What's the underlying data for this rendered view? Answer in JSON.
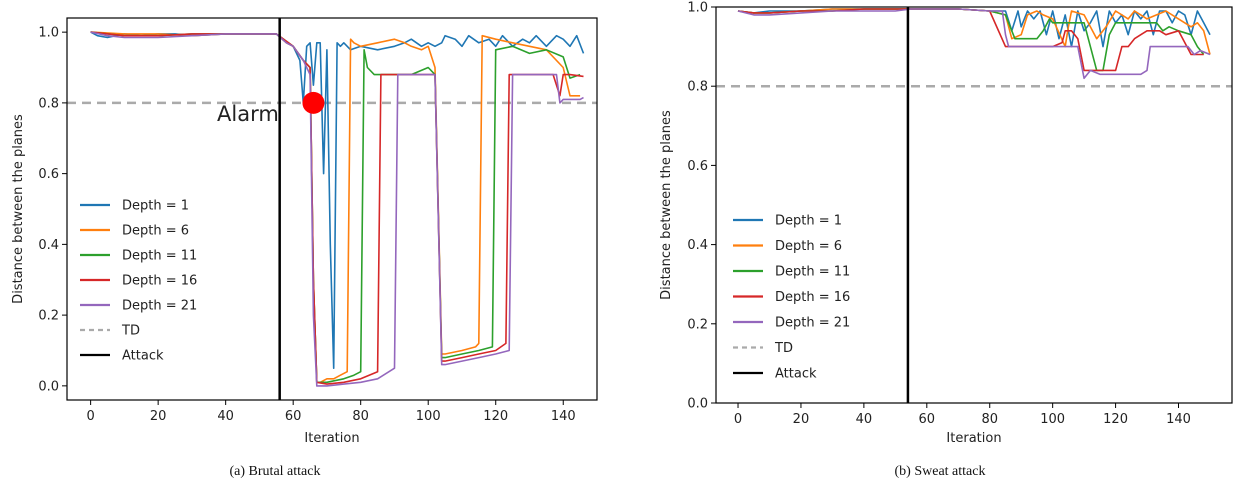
{
  "chart_data": [
    {
      "type": "line",
      "caption": "(a) Brutal attack",
      "xlabel": "Iteration",
      "ylabel": "Distance between the planes",
      "xlim": [
        -7,
        150
      ],
      "ylim": [
        -0.04,
        1.04
      ],
      "xticks": [
        0,
        20,
        40,
        60,
        80,
        100,
        120,
        140
      ],
      "yticks": [
        0.0,
        0.2,
        0.4,
        0.6,
        0.8,
        1.0
      ],
      "ytick_labels": [
        "0.0",
        "0.2",
        "0.4",
        "0.6",
        "0.8",
        "1.0"
      ],
      "grid": false,
      "legend_position": "lower-left",
      "series": [
        {
          "name": "Depth = 1",
          "color": "#1f77b4",
          "x": [
            0,
            2,
            5,
            10,
            15,
            20,
            25,
            30,
            40,
            50,
            55,
            58,
            60,
            62,
            63,
            64,
            65,
            66,
            67,
            68,
            69,
            70,
            71,
            72,
            73,
            74,
            75,
            77,
            80,
            85,
            90,
            93,
            95,
            98,
            100,
            102,
            104,
            105,
            108,
            110,
            112,
            115,
            118,
            120,
            122,
            125,
            128,
            130,
            132,
            135,
            138,
            140,
            142,
            144,
            146
          ],
          "y": [
            1.0,
            0.99,
            0.985,
            0.995,
            0.99,
            0.995,
            0.995,
            0.99,
            0.995,
            0.995,
            0.995,
            0.97,
            0.96,
            0.92,
            0.8,
            0.96,
            0.97,
            0.85,
            0.97,
            0.97,
            0.6,
            0.95,
            0.4,
            0.05,
            0.97,
            0.96,
            0.97,
            0.95,
            0.96,
            0.95,
            0.96,
            0.97,
            0.98,
            0.96,
            0.97,
            0.96,
            0.97,
            0.99,
            0.98,
            0.96,
            0.99,
            0.97,
            0.98,
            0.96,
            0.99,
            0.96,
            0.98,
            0.97,
            0.99,
            0.96,
            0.99,
            0.98,
            0.96,
            0.99,
            0.94
          ]
        },
        {
          "name": "Depth = 6",
          "color": "#ff7f0e",
          "x": [
            0,
            10,
            20,
            30,
            40,
            50,
            55,
            58,
            60,
            63,
            65,
            66,
            67,
            68,
            70,
            72,
            74,
            76,
            77,
            78,
            80,
            85,
            90,
            93,
            95,
            98,
            100,
            102,
            104,
            105,
            110,
            114,
            115,
            116,
            120,
            125,
            130,
            135,
            140,
            142,
            145
          ],
          "y": [
            1.0,
            0.995,
            0.995,
            0.99,
            0.995,
            0.995,
            0.995,
            0.97,
            0.96,
            0.92,
            0.9,
            0.3,
            0.01,
            0.01,
            0.02,
            0.02,
            0.03,
            0.04,
            0.98,
            0.97,
            0.96,
            0.97,
            0.98,
            0.97,
            0.96,
            0.95,
            0.96,
            0.9,
            0.09,
            0.09,
            0.1,
            0.11,
            0.12,
            0.99,
            0.98,
            0.97,
            0.96,
            0.95,
            0.9,
            0.82,
            0.82
          ]
        },
        {
          "name": "Depth = 11",
          "color": "#2ca02c",
          "x": [
            0,
            10,
            20,
            30,
            40,
            50,
            55,
            60,
            63,
            65,
            66,
            67,
            70,
            75,
            78,
            80,
            81,
            82,
            84,
            85,
            88,
            90,
            95,
            100,
            102,
            104,
            105,
            110,
            115,
            119,
            120,
            125,
            130,
            135,
            140,
            142,
            145
          ],
          "y": [
            1.0,
            0.99,
            0.99,
            0.995,
            0.995,
            0.995,
            0.995,
            0.96,
            0.92,
            0.9,
            0.3,
            0.01,
            0.01,
            0.02,
            0.03,
            0.04,
            0.95,
            0.9,
            0.88,
            0.88,
            0.88,
            0.88,
            0.88,
            0.9,
            0.88,
            0.08,
            0.08,
            0.09,
            0.1,
            0.11,
            0.95,
            0.96,
            0.94,
            0.95,
            0.93,
            0.87,
            0.88
          ]
        },
        {
          "name": "Depth = 16",
          "color": "#d62728",
          "x": [
            0,
            10,
            20,
            30,
            40,
            50,
            55,
            60,
            63,
            65,
            66,
            67,
            70,
            75,
            80,
            85,
            86,
            88,
            90,
            95,
            100,
            102,
            104,
            105,
            110,
            115,
            120,
            123,
            124,
            125,
            130,
            135,
            137,
            139,
            140,
            142,
            146
          ],
          "y": [
            1.0,
            0.99,
            0.99,
            0.995,
            0.995,
            0.995,
            0.995,
            0.96,
            0.92,
            0.9,
            0.3,
            0.01,
            0.005,
            0.01,
            0.02,
            0.04,
            0.88,
            0.88,
            0.88,
            0.88,
            0.88,
            0.88,
            0.07,
            0.07,
            0.08,
            0.09,
            0.1,
            0.12,
            0.88,
            0.88,
            0.88,
            0.88,
            0.88,
            0.82,
            0.88,
            0.88,
            0.875
          ]
        },
        {
          "name": "Depth = 21",
          "color": "#9467bd",
          "x": [
            0,
            5,
            10,
            20,
            30,
            40,
            50,
            55,
            58,
            60,
            63,
            65,
            66,
            67,
            70,
            75,
            80,
            85,
            90,
            91,
            92,
            95,
            100,
            102,
            104,
            105,
            110,
            115,
            120,
            124,
            125,
            126,
            130,
            135,
            138,
            139,
            140,
            145,
            146
          ],
          "y": [
            1.0,
            0.99,
            0.985,
            0.985,
            0.99,
            0.995,
            0.995,
            0.995,
            0.97,
            0.96,
            0.92,
            0.88,
            0.2,
            0.0,
            0.0,
            0.005,
            0.01,
            0.02,
            0.05,
            0.88,
            0.88,
            0.88,
            0.88,
            0.88,
            0.06,
            0.06,
            0.07,
            0.08,
            0.09,
            0.1,
            0.88,
            0.88,
            0.88,
            0.88,
            0.88,
            0.8,
            0.81,
            0.81,
            0.815
          ]
        }
      ],
      "threshold": {
        "label": "TD",
        "y": 0.8,
        "color": "#aaaaaa"
      },
      "attack": {
        "label": "Attack",
        "x": 56,
        "color": "#000000"
      },
      "alarm": {
        "label": "Alarm",
        "x": 66,
        "y": 0.8,
        "color": "#ff0000"
      }
    },
    {
      "type": "line",
      "caption": "(b) Sweat attack",
      "xlabel": "Iteration",
      "ylabel": "Distance between the planes",
      "xlim": [
        -7,
        157
      ],
      "ylim": [
        0.0,
        1.0
      ],
      "xticks": [
        0,
        20,
        40,
        60,
        80,
        100,
        120,
        140
      ],
      "yticks": [
        0.0,
        0.2,
        0.4,
        0.6,
        0.8,
        1.0
      ],
      "ytick_labels": [
        "0.0",
        "0.2",
        "0.4",
        "0.6",
        "0.8",
        "1.0"
      ],
      "grid": false,
      "legend_position": "lower-left",
      "series": [
        {
          "name": "Depth = 1",
          "color": "#1f77b4",
          "x": [
            0,
            5,
            10,
            20,
            30,
            40,
            50,
            55,
            60,
            70,
            80,
            85,
            87,
            89,
            90,
            92,
            94,
            96,
            98,
            100,
            102,
            104,
            106,
            108,
            110,
            112,
            114,
            116,
            118,
            120,
            122,
            124,
            126,
            128,
            130,
            132,
            134,
            136,
            138,
            140,
            142,
            144,
            146,
            148,
            150
          ],
          "y": [
            0.99,
            0.985,
            0.99,
            0.99,
            0.995,
            0.995,
            0.995,
            0.995,
            0.995,
            0.995,
            0.99,
            0.99,
            0.94,
            0.99,
            0.95,
            0.99,
            0.97,
            0.99,
            0.93,
            0.99,
            0.92,
            0.98,
            0.9,
            0.99,
            0.94,
            0.96,
            0.99,
            0.9,
            0.99,
            0.96,
            0.98,
            0.93,
            0.99,
            0.97,
            0.99,
            0.93,
            0.99,
            0.99,
            0.96,
            0.99,
            0.98,
            0.93,
            0.99,
            0.96,
            0.93
          ]
        },
        {
          "name": "Depth = 6",
          "color": "#ff7f0e",
          "x": [
            0,
            5,
            10,
            20,
            30,
            40,
            50,
            55,
            60,
            70,
            80,
            85,
            87,
            90,
            92,
            95,
            97,
            100,
            104,
            105,
            106,
            110,
            114,
            117,
            120,
            122,
            124,
            126,
            128,
            130,
            133,
            136,
            140,
            144,
            146,
            148,
            150
          ],
          "y": [
            0.99,
            0.985,
            0.985,
            0.99,
            0.995,
            0.995,
            0.995,
            0.995,
            0.995,
            0.995,
            0.99,
            0.98,
            0.92,
            0.93,
            0.98,
            0.99,
            0.98,
            0.97,
            0.9,
            0.95,
            0.99,
            0.98,
            0.92,
            0.95,
            0.99,
            0.98,
            0.97,
            0.99,
            0.98,
            0.97,
            0.98,
            0.99,
            0.97,
            0.95,
            0.96,
            0.94,
            0.88
          ]
        },
        {
          "name": "Depth = 11",
          "color": "#2ca02c",
          "x": [
            0,
            5,
            10,
            20,
            30,
            40,
            50,
            55,
            60,
            70,
            80,
            85,
            88,
            92,
            95,
            97,
            99,
            100,
            105,
            110,
            114,
            116,
            118,
            120,
            125,
            130,
            133,
            135,
            137,
            140,
            144,
            146,
            148
          ],
          "y": [
            0.99,
            0.985,
            0.985,
            0.99,
            0.99,
            0.995,
            0.995,
            0.995,
            0.995,
            0.995,
            0.99,
            0.98,
            0.92,
            0.92,
            0.92,
            0.94,
            0.97,
            0.96,
            0.96,
            0.96,
            0.84,
            0.84,
            0.93,
            0.96,
            0.96,
            0.96,
            0.96,
            0.94,
            0.95,
            0.94,
            0.93,
            0.9,
            0.88
          ]
        },
        {
          "name": "Depth = 16",
          "color": "#d62728",
          "x": [
            0,
            5,
            10,
            20,
            30,
            40,
            50,
            55,
            60,
            70,
            80,
            85,
            90,
            95,
            100,
            103,
            104,
            106,
            108,
            110,
            112,
            115,
            120,
            122,
            124,
            126,
            128,
            130,
            134,
            136,
            140,
            144,
            146,
            148
          ],
          "y": [
            0.99,
            0.985,
            0.985,
            0.99,
            0.99,
            0.995,
            0.995,
            0.995,
            0.995,
            0.995,
            0.99,
            0.9,
            0.9,
            0.9,
            0.9,
            0.91,
            0.94,
            0.94,
            0.92,
            0.84,
            0.84,
            0.84,
            0.84,
            0.9,
            0.9,
            0.92,
            0.93,
            0.94,
            0.94,
            0.93,
            0.94,
            0.88,
            0.88,
            0.88
          ]
        },
        {
          "name": "Depth = 21",
          "color": "#9467bd",
          "x": [
            0,
            5,
            10,
            20,
            30,
            40,
            50,
            55,
            60,
            70,
            80,
            84,
            85,
            86,
            90,
            95,
            100,
            105,
            108,
            110,
            112,
            115,
            120,
            125,
            128,
            130,
            131,
            133,
            135,
            140,
            143,
            145,
            147,
            150
          ],
          "y": [
            0.99,
            0.98,
            0.98,
            0.985,
            0.99,
            0.99,
            0.99,
            0.995,
            0.995,
            0.995,
            0.99,
            0.99,
            0.93,
            0.9,
            0.9,
            0.9,
            0.9,
            0.9,
            0.9,
            0.82,
            0.84,
            0.83,
            0.83,
            0.83,
            0.83,
            0.84,
            0.9,
            0.9,
            0.9,
            0.9,
            0.9,
            0.88,
            0.89,
            0.88
          ]
        }
      ],
      "threshold": {
        "label": "TD",
        "y": 0.8,
        "color": "#aaaaaa"
      },
      "attack": {
        "label": "Attack",
        "x": 54,
        "color": "#000000"
      }
    }
  ]
}
